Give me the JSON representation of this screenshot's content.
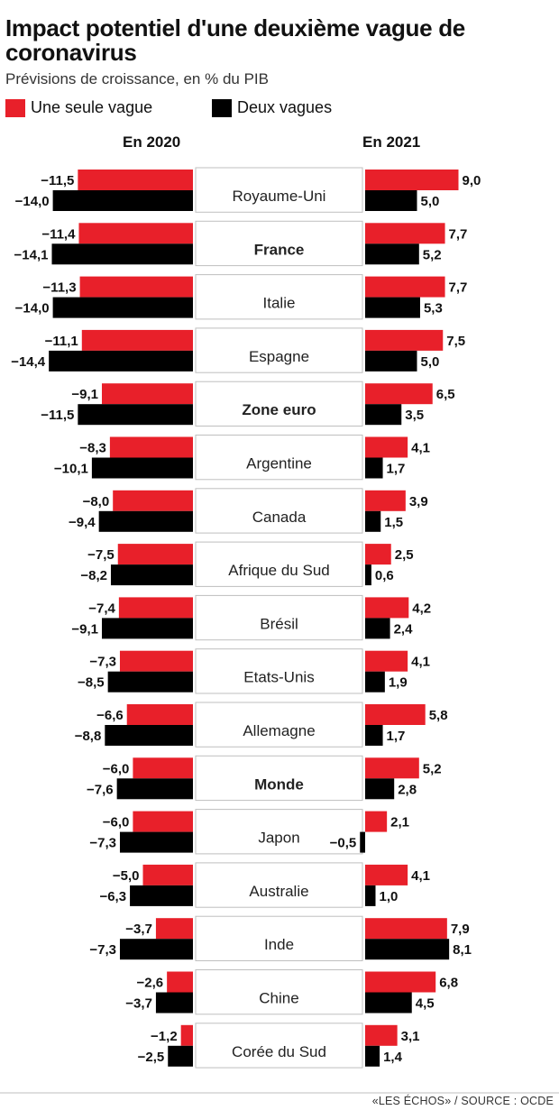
{
  "header": {
    "title": "Impact potentiel d'une deuxième vague de coronavirus",
    "subtitle": "Prévisions de croissance, en % du PIB"
  },
  "legend": {
    "one_wave": "Une seule vague",
    "two_waves": "Deux vagues"
  },
  "colors": {
    "one_wave": "#e8202a",
    "two_waves": "#000000",
    "label_box_border": "#bfbfbf"
  },
  "footer": {
    "source": "«LES ÉCHOS» / SOURCE : OCDE"
  },
  "chart_data": {
    "type": "bar",
    "orientation": "horizontal",
    "title": "Impact potentiel d'une deuxième vague de coronavirus",
    "subtitle": "Prévisions de croissance, en % du PIB",
    "panels": [
      "En 2020",
      "En 2021"
    ],
    "categories": [
      "Royaume-Uni",
      "France",
      "Italie",
      "Espagne",
      "Zone euro",
      "Argentine",
      "Canada",
      "Afrique du Sud",
      "Brésil",
      "Etats-Unis",
      "Allemagne",
      "Monde",
      "Japon",
      "Australie",
      "Inde",
      "Chine",
      "Corée du Sud"
    ],
    "bold_categories": [
      "France",
      "Zone euro",
      "Monde"
    ],
    "series": [
      {
        "name": "Une seule vague",
        "values_2020": [
          -11.5,
          -11.4,
          -11.3,
          -11.1,
          -9.1,
          -8.3,
          -8.0,
          -7.5,
          -7.4,
          -7.3,
          -6.6,
          -6.0,
          -6.0,
          -5.0,
          -3.7,
          -2.6,
          -1.2
        ],
        "values_2021": [
          9.0,
          7.7,
          7.7,
          7.5,
          6.5,
          4.1,
          3.9,
          2.5,
          4.2,
          4.1,
          5.8,
          5.2,
          2.1,
          4.1,
          7.9,
          6.8,
          3.1
        ],
        "labels_2020": [
          "−11,5",
          "−11,4",
          "−11,3",
          "−11,1",
          "−9,1",
          "−8,3",
          "−8,0",
          "−7,5",
          "−7,4",
          "−7,3",
          "−6,6",
          "−6,0",
          "−6,0",
          "−5,0",
          "−3,7",
          "−2,6",
          "−1,2"
        ],
        "labels_2021": [
          "9,0",
          "7,7",
          "7,7",
          "7,5",
          "6,5",
          "4,1",
          "3,9",
          "2,5",
          "4,2",
          "4,1",
          "5,8",
          "5,2",
          "2,1",
          "4,1",
          "7,9",
          "6,8",
          "3,1"
        ]
      },
      {
        "name": "Deux vagues",
        "values_2020": [
          -14.0,
          -14.1,
          -14.0,
          -14.4,
          -11.5,
          -10.1,
          -9.4,
          -8.2,
          -9.1,
          -8.5,
          -8.8,
          -7.6,
          -7.3,
          -6.3,
          -7.3,
          -3.7,
          -2.5
        ],
        "values_2021": [
          5.0,
          5.2,
          5.3,
          5.0,
          3.5,
          1.7,
          1.5,
          0.6,
          2.4,
          1.9,
          1.7,
          2.8,
          -0.5,
          1.0,
          8.1,
          4.5,
          1.4
        ],
        "labels_2020": [
          "−14,0",
          "−14,1",
          "−14,0",
          "−14,4",
          "−11,5",
          "−10,1",
          "−9,4",
          "−8,2",
          "−9,1",
          "−8,5",
          "−8,8",
          "−7,6",
          "−7,3",
          "−6,3",
          "−7,3",
          "−3,7",
          "−2,5"
        ],
        "labels_2021": [
          "5,0",
          "5,2",
          "5,3",
          "5,0",
          "3,5",
          "1,7",
          "1,5",
          "0,6",
          "2,4",
          "1,9",
          "1,7",
          "2,8",
          "−0,5",
          "1,0",
          "8,1",
          "4,5",
          "1,4"
        ]
      }
    ],
    "grid": false,
    "legend_position": "top-left"
  }
}
